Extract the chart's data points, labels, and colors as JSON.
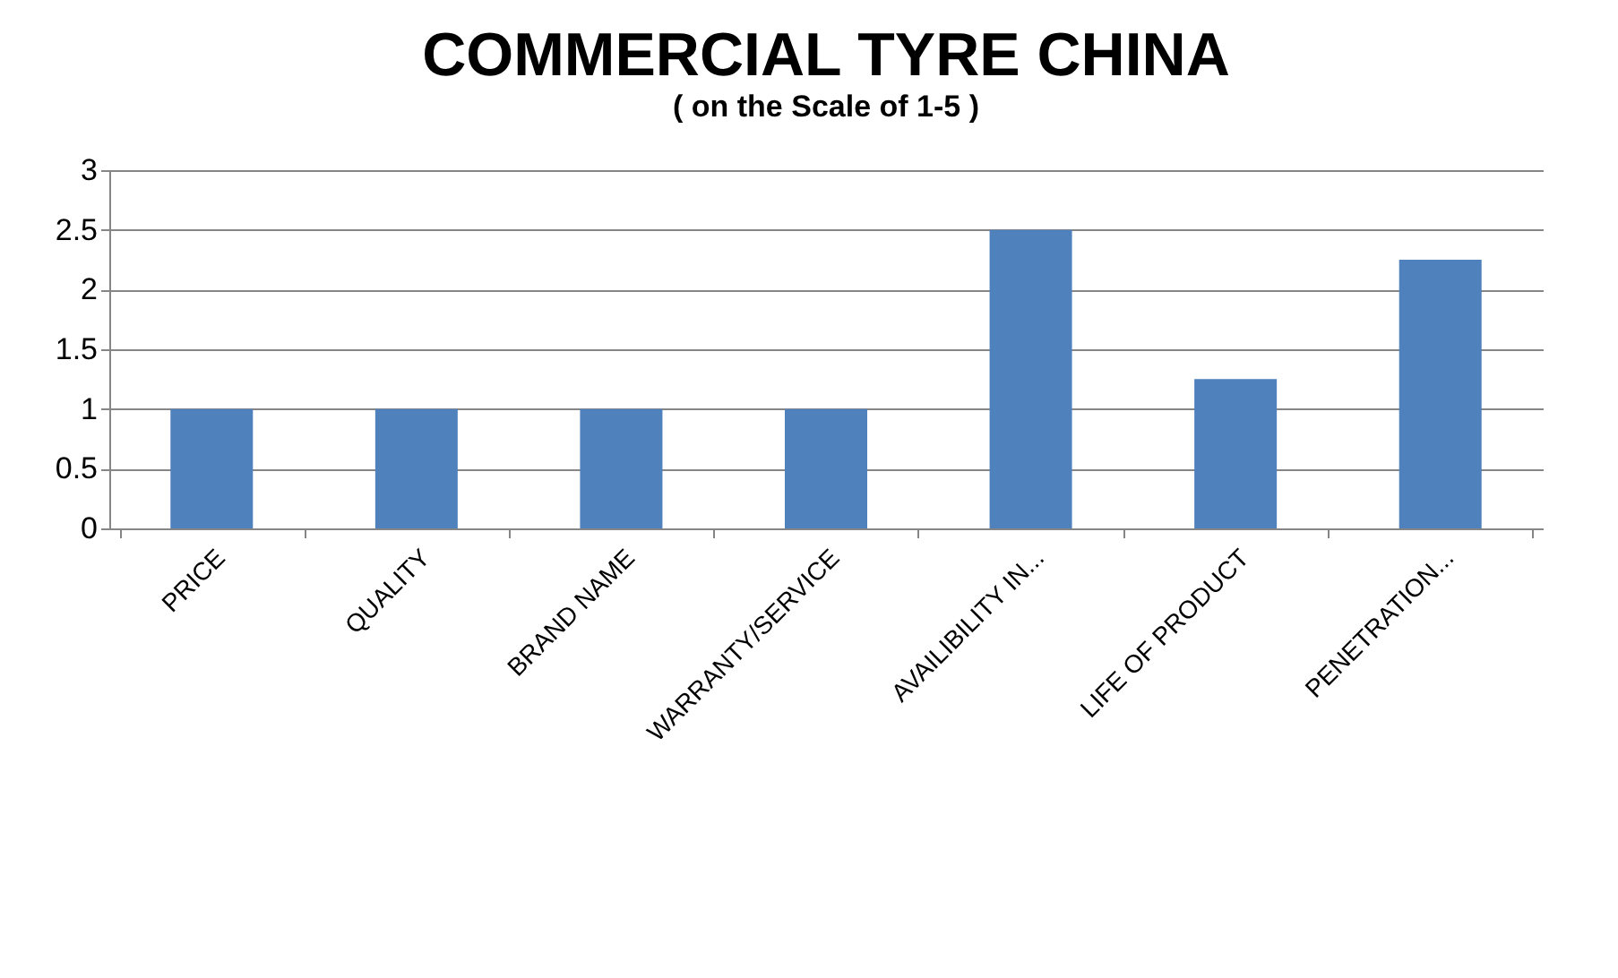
{
  "chart_data": {
    "type": "bar",
    "title": "COMMERCIAL TYRE CHINA",
    "subtitle": "( on the Scale of 1-5 )",
    "categories": [
      "PRICE",
      "QUALITY",
      "BRAND NAME",
      "WARRANTY/SERVICE",
      "AVAILIBILITY IN...",
      "LIFE OF PRODUCT",
      "PENETRATION..."
    ],
    "values": [
      1,
      1,
      1,
      1,
      2.5,
      1.25,
      2.25
    ],
    "color": "#4f81bd",
    "ylim": [
      0,
      3
    ],
    "yticks": [
      0,
      0.5,
      1,
      1.5,
      2,
      2.5,
      3
    ],
    "grid": "y"
  }
}
